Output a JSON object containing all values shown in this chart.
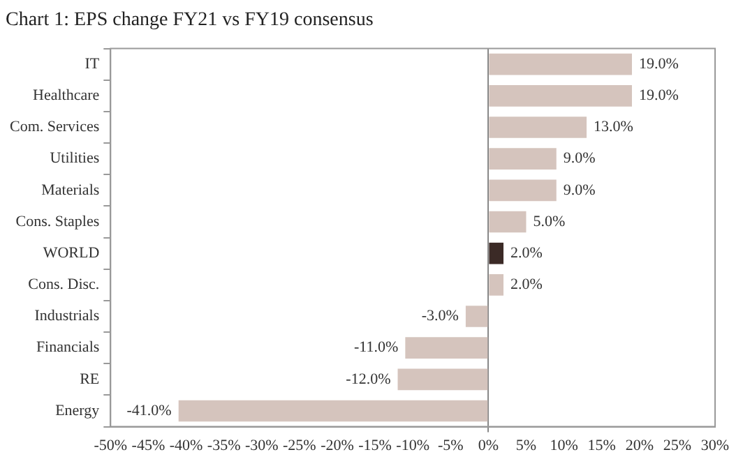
{
  "chart_data": {
    "type": "bar",
    "orientation": "horizontal",
    "title": "Chart 1: EPS change FY21 vs FY19 consensus",
    "categories": [
      "IT",
      "Healthcare",
      "Com. Services",
      "Utilities",
      "Materials",
      "Cons. Staples",
      "WORLD",
      "Cons. Disc.",
      "Industrials",
      "Financials",
      "RE",
      "Energy"
    ],
    "values": [
      19,
      19,
      13,
      9,
      9,
      5,
      2,
      2,
      -3,
      -11,
      -12,
      -41
    ],
    "colors": [
      "#d5c4bd",
      "#d5c4bd",
      "#d5c4bd",
      "#d5c4bd",
      "#d5c4bd",
      "#d5c4bd",
      "#3b2a26",
      "#d5c4bd",
      "#d5c4bd",
      "#d5c4bd",
      "#d5c4bd",
      "#d5c4bd"
    ],
    "value_labels": [
      "19.0%",
      "19.0%",
      "13.0%",
      "9.0%",
      "9.0%",
      "5.0%",
      "2.0%",
      "2.0%",
      "-3.0%",
      "-11.0%",
      "-12.0%",
      "-41.0%"
    ],
    "xlim": [
      -50,
      30
    ],
    "xticks": [
      {
        "value": -50,
        "label": "-50%"
      },
      {
        "value": -45,
        "label": "-45%"
      },
      {
        "value": -40,
        "label": "-40%"
      },
      {
        "value": -35,
        "label": "-35%"
      },
      {
        "value": -30,
        "label": "-30%"
      },
      {
        "value": -25,
        "label": "-25%"
      },
      {
        "value": -20,
        "label": "-20%"
      },
      {
        "value": -15,
        "label": "-15%"
      },
      {
        "value": -10,
        "label": "-10%"
      },
      {
        "value": -5,
        "label": "-5%"
      },
      {
        "value": 0,
        "label": "0%"
      },
      {
        "value": 5,
        "label": "5%"
      },
      {
        "value": 10,
        "label": "10%"
      },
      {
        "value": 15,
        "label": "15%"
      },
      {
        "value": 20,
        "label": "20%"
      },
      {
        "value": 25,
        "label": "25%"
      },
      {
        "value": 30,
        "label": "30%"
      }
    ]
  }
}
